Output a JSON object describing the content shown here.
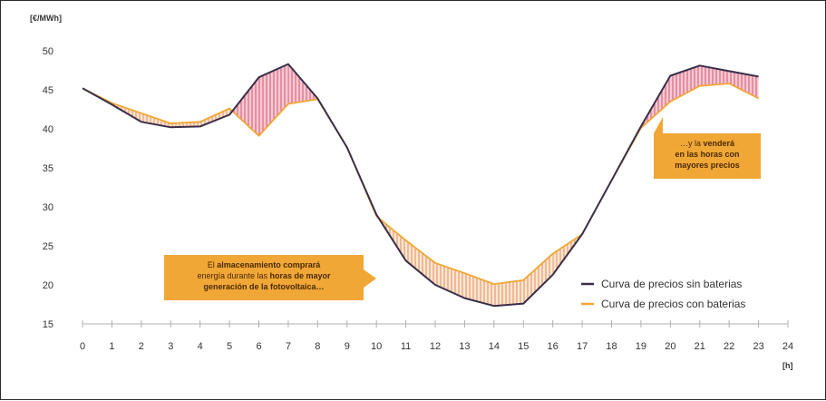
{
  "chart_data": {
    "type": "line",
    "ylabel": "[€/MWh]",
    "xlabel": "[h]",
    "ylim": [
      15,
      50
    ],
    "xlim": [
      0,
      24
    ],
    "yticks": [
      15,
      20,
      25,
      30,
      35,
      40,
      45,
      50
    ],
    "xticks": [
      0,
      1,
      2,
      3,
      4,
      5,
      6,
      7,
      8,
      9,
      10,
      11,
      12,
      13,
      14,
      15,
      16,
      17,
      18,
      19,
      20,
      21,
      22,
      23,
      24
    ],
    "x": [
      0,
      1,
      2,
      3,
      4,
      5,
      6,
      7,
      8,
      9,
      10,
      11,
      12,
      13,
      14,
      15,
      16,
      17,
      18,
      19,
      20,
      21,
      22,
      23
    ],
    "series": [
      {
        "name": "Curva de precios sin baterias",
        "color": "#3a2f4a",
        "values": [
          45.2,
          43.1,
          40.9,
          40.2,
          40.3,
          41.8,
          46.6,
          48.3,
          43.9,
          37.6,
          29.0,
          23.1,
          20.0,
          18.3,
          17.3,
          17.6,
          21.3,
          26.5,
          33.4,
          40.3,
          46.8,
          48.1,
          47.4,
          46.7
        ]
      },
      {
        "name": "Curva de precios con baterias",
        "color": "#f0a735",
        "values": [
          45.2,
          43.3,
          42.0,
          40.7,
          40.9,
          42.6,
          39.1,
          43.2,
          43.8,
          37.6,
          28.8,
          25.7,
          22.8,
          21.5,
          20.1,
          20.6,
          24.0,
          26.5,
          33.4,
          40.1,
          43.5,
          45.5,
          45.8,
          43.9
        ]
      }
    ],
    "fills": {
      "higher_without_batteries": "#f7c8d2",
      "higher_without_batteries_hatch": "#c83a5a",
      "higher_with_batteries": "#fde6d2",
      "higher_with_batteries_hatch": "#d9763a"
    },
    "legend_position": "bottom-right",
    "grid": false
  },
  "annotations": {
    "left_callout": {
      "text_1": "El ",
      "bold_1": "almacenamiento comprará",
      "text_2": "energía durante las ",
      "bold_2": "horas de mayor",
      "bold_3": "generación de la fotovoltaica…"
    },
    "right_callout": {
      "text_1": "…y la ",
      "bold_1": "venderá",
      "bold_2": "en las horas con",
      "bold_3": "mayores precios"
    }
  }
}
